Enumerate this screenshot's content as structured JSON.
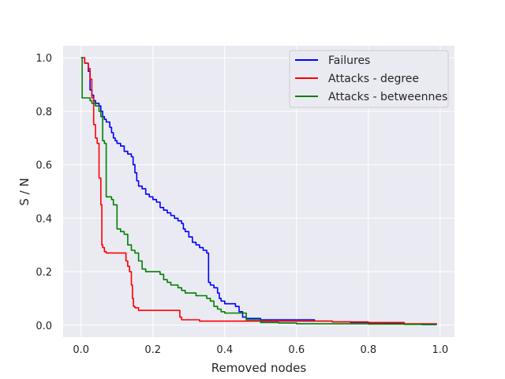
{
  "chart_data": {
    "type": "line",
    "title": "",
    "xlabel": "Removed nodes",
    "ylabel": "S / N",
    "xlim": [
      -0.05,
      1.04
    ],
    "ylim": [
      -0.045,
      1.045
    ],
    "xticks": [
      0.0,
      0.2,
      0.4,
      0.6,
      0.8,
      1.0
    ],
    "xtick_labels": [
      "0.0",
      "0.2",
      "0.4",
      "0.6",
      "0.8",
      "1.0"
    ],
    "yticks": [
      0.0,
      0.2,
      0.4,
      0.6,
      0.8,
      1.0
    ],
    "ytick_labels": [
      "0.0",
      "0.2",
      "0.4",
      "0.6",
      "0.8",
      "1.0"
    ],
    "grid": true,
    "legend_position": "top-right",
    "series": [
      {
        "name": "Failures",
        "color": "#0000ff",
        "x": [
          0.0,
          0.01,
          0.02,
          0.025,
          0.03,
          0.035,
          0.04,
          0.05,
          0.055,
          0.06,
          0.065,
          0.07,
          0.08,
          0.085,
          0.09,
          0.095,
          0.1,
          0.11,
          0.12,
          0.13,
          0.14,
          0.145,
          0.15,
          0.155,
          0.16,
          0.17,
          0.18,
          0.19,
          0.2,
          0.21,
          0.22,
          0.23,
          0.24,
          0.25,
          0.26,
          0.27,
          0.28,
          0.285,
          0.29,
          0.3,
          0.31,
          0.32,
          0.33,
          0.34,
          0.35,
          0.355,
          0.36,
          0.37,
          0.38,
          0.385,
          0.39,
          0.4,
          0.43,
          0.44,
          0.45,
          0.46,
          0.5,
          0.55,
          0.6,
          0.65,
          0.7,
          0.75,
          0.8,
          0.85,
          0.9,
          0.95,
          0.99
        ],
        "y": [
          1.0,
          0.98,
          0.95,
          0.88,
          0.86,
          0.84,
          0.83,
          0.82,
          0.8,
          0.78,
          0.77,
          0.76,
          0.74,
          0.72,
          0.7,
          0.69,
          0.68,
          0.67,
          0.65,
          0.64,
          0.63,
          0.6,
          0.57,
          0.54,
          0.52,
          0.51,
          0.49,
          0.48,
          0.47,
          0.46,
          0.44,
          0.43,
          0.42,
          0.41,
          0.4,
          0.39,
          0.38,
          0.36,
          0.35,
          0.33,
          0.31,
          0.3,
          0.29,
          0.28,
          0.27,
          0.16,
          0.15,
          0.14,
          0.12,
          0.1,
          0.09,
          0.08,
          0.07,
          0.05,
          0.03,
          0.025,
          0.02,
          0.02,
          0.02,
          0.015,
          0.012,
          0.01,
          0.008,
          0.006,
          0.004,
          0.002,
          0.001
        ]
      },
      {
        "name": "Attacks - degree",
        "color": "#ff0000",
        "x": [
          0.0,
          0.01,
          0.02,
          0.025,
          0.03,
          0.035,
          0.04,
          0.045,
          0.05,
          0.055,
          0.058,
          0.06,
          0.065,
          0.07,
          0.12,
          0.125,
          0.13,
          0.135,
          0.14,
          0.143,
          0.146,
          0.15,
          0.16,
          0.27,
          0.275,
          0.28,
          0.33,
          0.4,
          0.5,
          0.6,
          0.7,
          0.8,
          0.9,
          0.99
        ],
        "y": [
          1.0,
          0.98,
          0.96,
          0.92,
          0.85,
          0.75,
          0.7,
          0.68,
          0.55,
          0.45,
          0.3,
          0.29,
          0.275,
          0.27,
          0.27,
          0.24,
          0.22,
          0.2,
          0.15,
          0.1,
          0.07,
          0.065,
          0.055,
          0.055,
          0.03,
          0.02,
          0.015,
          0.015,
          0.015,
          0.015,
          0.012,
          0.01,
          0.005,
          0.002
        ]
      },
      {
        "name": "Attacks - betweennes",
        "color": "#008000",
        "x": [
          0.0,
          0.003,
          0.02,
          0.025,
          0.03,
          0.04,
          0.05,
          0.055,
          0.06,
          0.065,
          0.07,
          0.085,
          0.09,
          0.1,
          0.11,
          0.12,
          0.13,
          0.14,
          0.15,
          0.16,
          0.17,
          0.18,
          0.22,
          0.23,
          0.24,
          0.25,
          0.26,
          0.27,
          0.28,
          0.29,
          0.3,
          0.32,
          0.35,
          0.36,
          0.37,
          0.38,
          0.39,
          0.4,
          0.45,
          0.46,
          0.5,
          0.55,
          0.6,
          0.7,
          0.8,
          0.9,
          0.99
        ],
        "y": [
          1.0,
          0.85,
          0.85,
          0.84,
          0.83,
          0.82,
          0.8,
          0.78,
          0.69,
          0.68,
          0.48,
          0.47,
          0.45,
          0.36,
          0.35,
          0.34,
          0.3,
          0.28,
          0.27,
          0.24,
          0.21,
          0.2,
          0.19,
          0.17,
          0.16,
          0.15,
          0.15,
          0.14,
          0.13,
          0.12,
          0.12,
          0.11,
          0.1,
          0.09,
          0.07,
          0.06,
          0.05,
          0.045,
          0.045,
          0.02,
          0.01,
          0.008,
          0.005,
          0.005,
          0.004,
          0.003,
          0.002
        ]
      }
    ]
  }
}
